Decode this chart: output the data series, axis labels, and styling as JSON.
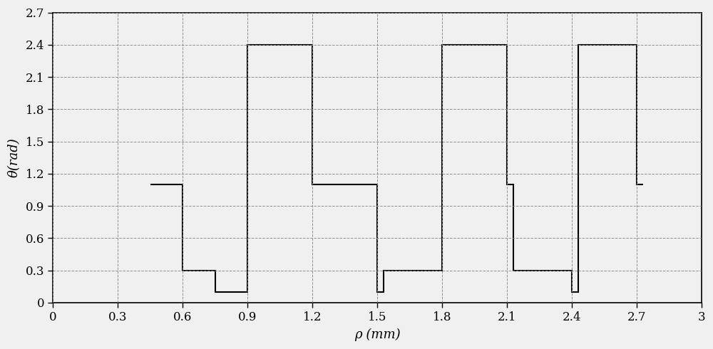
{
  "title": "",
  "xlabel": "ρ (mm)",
  "ylabel": "θ(rad)",
  "xlim": [
    0,
    3.0
  ],
  "ylim": [
    0,
    2.7
  ],
  "xticks": [
    0,
    0.3,
    0.6,
    0.9,
    1.2,
    1.5,
    1.8,
    2.1,
    2.4,
    2.7,
    3.0
  ],
  "yticks": [
    0,
    0.3,
    0.6,
    0.9,
    1.2,
    1.5,
    1.8,
    2.1,
    2.4,
    2.7
  ],
  "line_color": "#000000",
  "line_width": 1.5,
  "background_color": "#f0f0f0",
  "grid_color": "#888888",
  "figsize": [
    10.0,
    4.9
  ],
  "dpi": 100,
  "step_x": [
    0.45,
    0.6,
    0.6,
    0.75,
    0.75,
    0.9,
    0.9,
    1.2,
    1.2,
    1.35,
    1.35,
    1.5,
    1.5,
    1.53,
    1.53,
    1.8,
    1.8,
    2.1,
    2.1,
    2.13,
    2.13,
    2.4,
    2.4,
    2.43,
    2.43,
    2.7,
    2.7,
    2.73
  ],
  "step_y": [
    1.1,
    1.1,
    0.3,
    0.3,
    0.1,
    0.1,
    2.4,
    2.4,
    1.1,
    1.1,
    1.1,
    1.1,
    0.1,
    0.1,
    0.3,
    0.3,
    2.4,
    2.4,
    1.1,
    1.1,
    0.3,
    0.3,
    0.1,
    0.1,
    2.4,
    2.4,
    1.1,
    1.1
  ],
  "font_family": "DejaVu Serif"
}
